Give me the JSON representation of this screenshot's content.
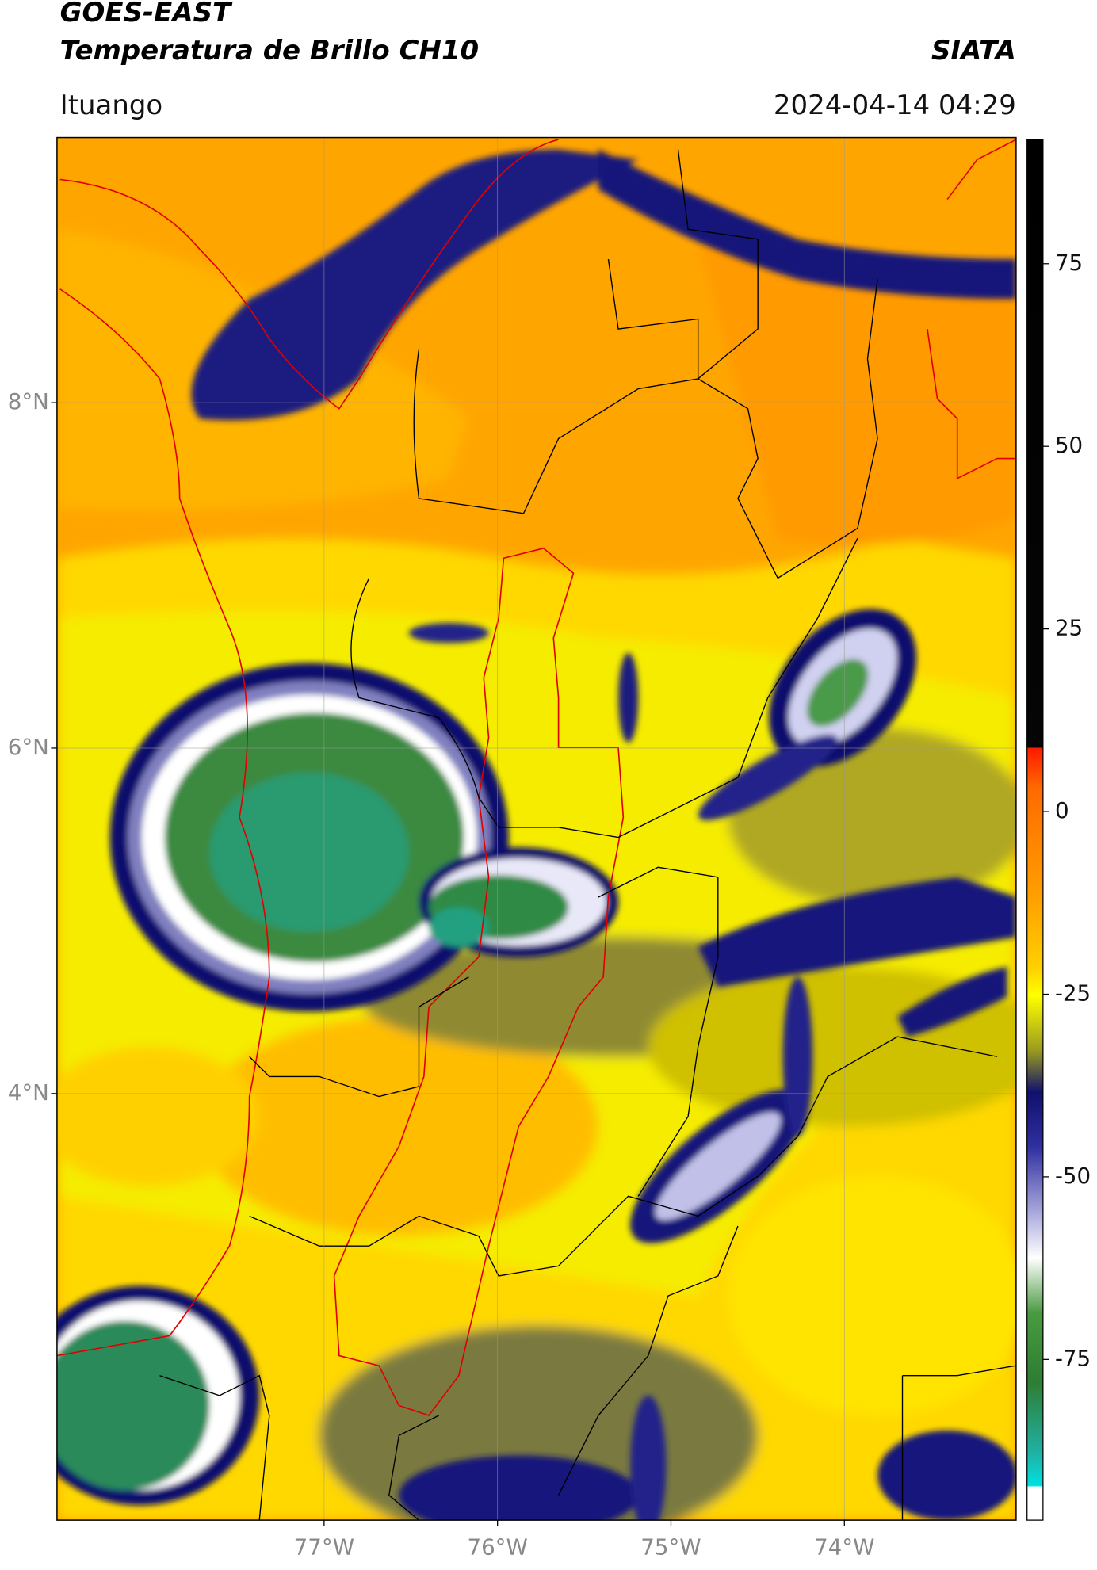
{
  "header": {
    "satellite": "GOES-EAST",
    "product": "Temperatura de Brillo CH10",
    "brand": "SIATA",
    "location": "Ituango",
    "datetime": "2024-04-14 04:29"
  },
  "map": {
    "xlim": [
      -78.54,
      -73.01
    ],
    "ylim": [
      1.53,
      9.535
    ],
    "xticks": [
      {
        "value": -77,
        "label": "77°W"
      },
      {
        "value": -76,
        "label": "76°W"
      },
      {
        "value": -75,
        "label": "75°W"
      },
      {
        "value": -74,
        "label": "74°W"
      }
    ],
    "yticks": [
      {
        "value": 8,
        "label": "8°N"
      },
      {
        "value": 6,
        "label": "6°N"
      },
      {
        "value": 4,
        "label": "4°N"
      }
    ],
    "grid": true,
    "colorbar": {
      "lim": [
        -97,
        92
      ],
      "ticks": [
        75,
        50,
        25,
        0,
        -25,
        -50,
        -75
      ]
    }
  }
}
